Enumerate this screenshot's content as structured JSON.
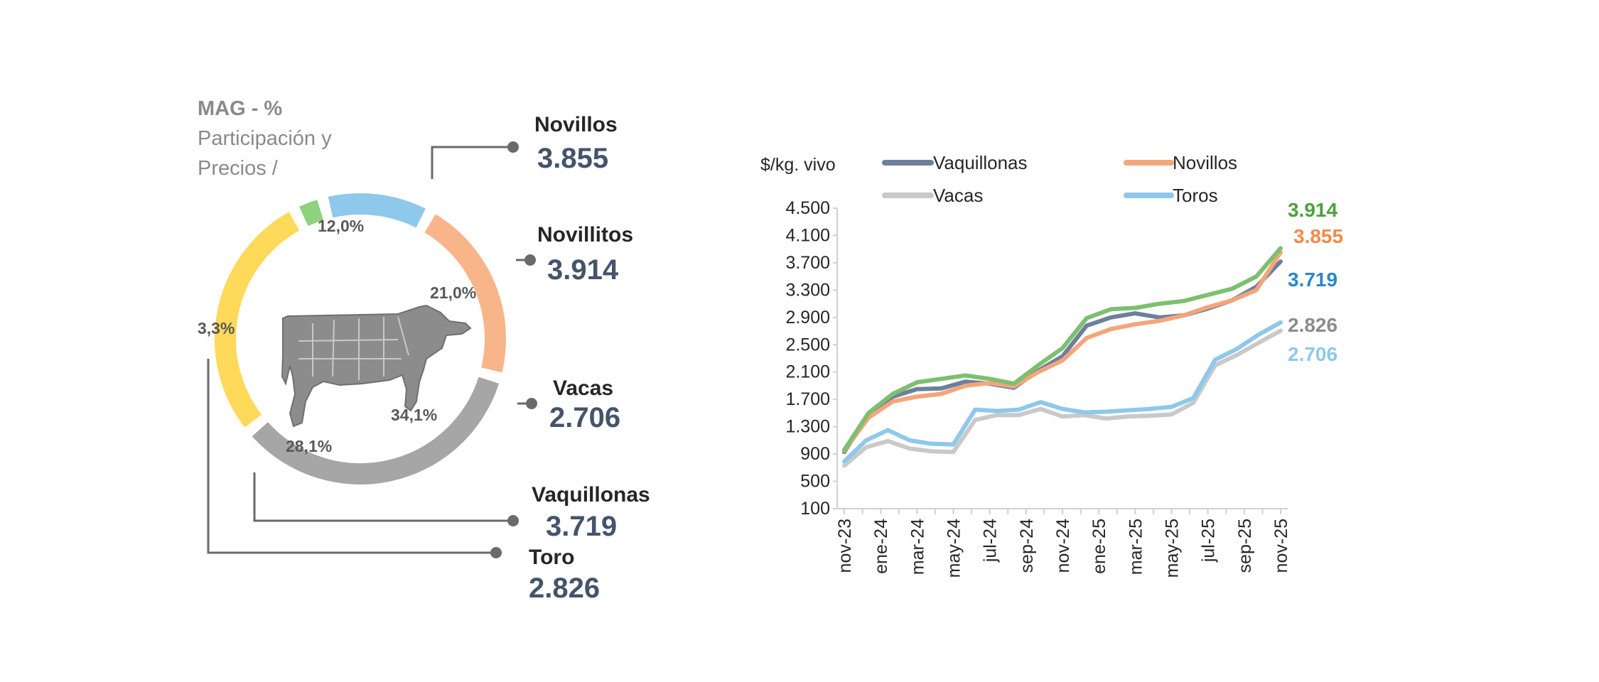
{
  "donut": {
    "header": [
      "MAG - %",
      "Participación y",
      "Precios /"
    ],
    "segments": [
      {
        "key": "toros",
        "pct_label": "12,0%",
        "value": 12.0,
        "color": "#8ec8ea"
      },
      {
        "key": "novillos",
        "pct_label": "21,0%",
        "value": 21.0,
        "color": "#f8b589"
      },
      {
        "key": "vacas",
        "pct_label": "34,1%",
        "value": 34.1,
        "color": "#a6a6a6"
      },
      {
        "key": "vaquillonas",
        "pct_label": "28,1%",
        "value": 28.1,
        "color": "#ffd95a"
      },
      {
        "key": "novillitos",
        "pct_label": "3,3%",
        "value": 3.3,
        "color": "#8fd17f"
      }
    ],
    "callouts": [
      {
        "key": "novillos",
        "name": "Novillos",
        "price": "3.855"
      },
      {
        "key": "novillitos",
        "name": "Novillitos",
        "price": "3.914"
      },
      {
        "key": "vacas",
        "name": "Vacas",
        "price": "2.706"
      },
      {
        "key": "vaquillonas",
        "name": "Vaquillonas",
        "price": "3.719"
      },
      {
        "key": "toro",
        "name": "Toro",
        "price": "2.826"
      }
    ],
    "cow_icon": "cow-beef-cuts-icon"
  },
  "chart_data": {
    "type": "line",
    "ylabel": "$/kg. vivo",
    "ylim": [
      100,
      4500
    ],
    "yticks": [
      "4.500",
      "4.100",
      "3.700",
      "3.300",
      "2.900",
      "2.500",
      "2.100",
      "1.700",
      "1.300",
      "900",
      "500",
      "100"
    ],
    "ytick_values": [
      4500,
      4100,
      3700,
      3300,
      2900,
      2500,
      2100,
      1700,
      1300,
      900,
      500,
      100
    ],
    "xticks": [
      "nov-23",
      "ene-24",
      "mar-24",
      "may-24",
      "jul-24",
      "sep-24",
      "nov-24",
      "ene-25",
      "mar-25",
      "may-25",
      "jul-25",
      "sep-25",
      "nov-25"
    ],
    "x_count": 25,
    "legend": [
      {
        "name": "Vaquillonas",
        "color": "#6e7f9c"
      },
      {
        "name": "Novillos",
        "color": "#f4a57a"
      },
      {
        "name": "Vacas",
        "color": "#c9c9c9"
      },
      {
        "name": "Toros",
        "color": "#8ec8ea"
      }
    ],
    "series": [
      {
        "name": "Vacas",
        "color": "#c9c9c9",
        "values": [
          730,
          1000,
          1090,
          980,
          940,
          930,
          1400,
          1470,
          1470,
          1560,
          1450,
          1470,
          1420,
          1450,
          1460,
          1480,
          1650,
          2200,
          2350,
          2530,
          2706
        ]
      },
      {
        "name": "Toros",
        "color": "#8ec8ea",
        "values": [
          790,
          1100,
          1250,
          1100,
          1050,
          1040,
          1550,
          1530,
          1550,
          1660,
          1560,
          1510,
          1520,
          1540,
          1560,
          1590,
          1720,
          2280,
          2440,
          2650,
          2826
        ]
      },
      {
        "name": "Vaquillonas",
        "color": "#6e7f9c",
        "values": [
          930,
          1470,
          1740,
          1850,
          1860,
          1960,
          1930,
          1870,
          2120,
          2330,
          2780,
          2900,
          2960,
          2900,
          2930,
          3030,
          3150,
          3350,
          3719
        ]
      },
      {
        "name": "Novillos",
        "color": "#f4a57a",
        "values": [
          950,
          1430,
          1670,
          1740,
          1780,
          1900,
          1940,
          1890,
          2100,
          2270,
          2600,
          2730,
          2800,
          2850,
          2930,
          3050,
          3150,
          3300,
          3855
        ]
      },
      {
        "name": "Novillitos",
        "color": "#7cc06f",
        "values": [
          960,
          1500,
          1780,
          1950,
          2000,
          2050,
          2000,
          1930,
          2200,
          2450,
          2890,
          3020,
          3040,
          3100,
          3140,
          3230,
          3320,
          3500,
          3914
        ]
      }
    ],
    "end_labels": [
      {
        "text": "3.914",
        "color": "#4ba13d",
        "value": 3914
      },
      {
        "text": "3.855",
        "color": "#f28b4a",
        "value": 3855
      },
      {
        "text": "3.719",
        "color": "#2a86c8",
        "value": 3719
      },
      {
        "text": "2.826",
        "color": "#8c8c8c",
        "value": 2826
      },
      {
        "text": "2.706",
        "color": "#8ec8ea",
        "value": 2706
      }
    ]
  }
}
